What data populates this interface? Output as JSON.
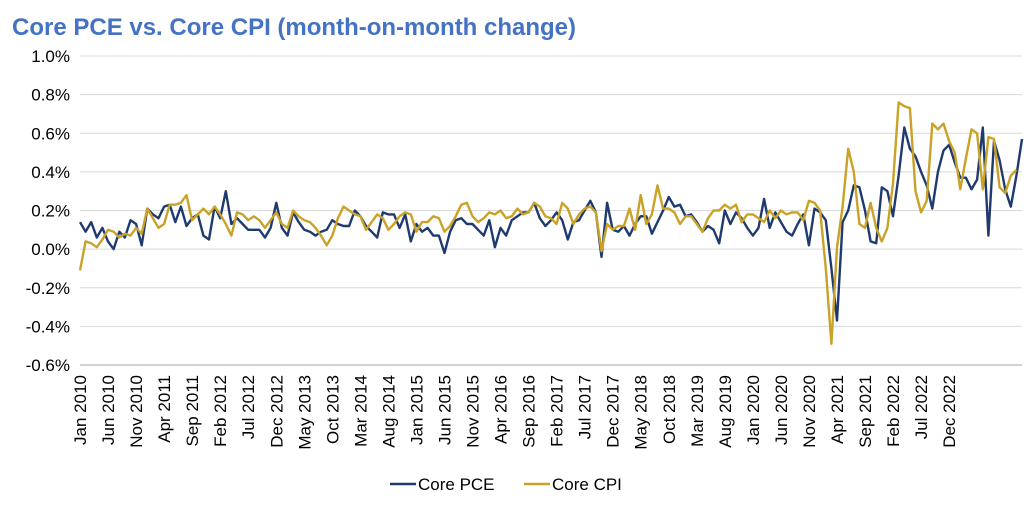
{
  "chart_data": {
    "type": "line",
    "title": "Core PCE vs. Core CPI (month-on-month change)",
    "xlabel": "",
    "ylabel": "",
    "ylim": [
      -0.6,
      1.0
    ],
    "yticks": [
      "1.0%",
      "0.8%",
      "0.6%",
      "0.4%",
      "0.2%",
      "0.0%",
      "-0.2%",
      "-0.4%",
      "-0.6%"
    ],
    "ytick_values": [
      1.0,
      0.8,
      0.6,
      0.4,
      0.2,
      0.0,
      -0.2,
      -0.4,
      -0.6
    ],
    "xtick_labels": [
      "Jan 2010",
      "Jun 2010",
      "Nov 2010",
      "Apr 2011",
      "Sep 2011",
      "Feb 2012",
      "Jul 2012",
      "Dec 2012",
      "May 2013",
      "Oct 2013",
      "Mar 2014",
      "Aug 2014",
      "Jan 2015",
      "Jun 2015",
      "Nov 2015",
      "Apr 2016",
      "Sep 2016",
      "Feb 2017",
      "Jul 2017",
      "Dec 2017",
      "May 2018",
      "Oct 2018",
      "Mar 2019",
      "Aug 2019",
      "Jan 2020",
      "Jun 2020",
      "Nov 2020",
      "Apr 2021",
      "Sep 2021",
      "Feb 2022",
      "Jul 2022",
      "Dec 2022"
    ],
    "grid": true,
    "legend_position": "bottom-center",
    "series": [
      {
        "name": "Core PCE",
        "color": "#1F3A6E",
        "values": [
          0.14,
          0.09,
          0.14,
          0.06,
          0.11,
          0.04,
          0.0,
          0.09,
          0.06,
          0.15,
          0.13,
          0.02,
          0.21,
          0.18,
          0.16,
          0.22,
          0.23,
          0.14,
          0.22,
          0.12,
          0.16,
          0.18,
          0.07,
          0.05,
          0.22,
          0.16,
          0.3,
          0.13,
          0.16,
          0.13,
          0.1,
          0.1,
          0.1,
          0.06,
          0.11,
          0.24,
          0.11,
          0.07,
          0.19,
          0.14,
          0.1,
          0.09,
          0.07,
          0.09,
          0.1,
          0.15,
          0.13,
          0.12,
          0.12,
          0.2,
          0.17,
          0.12,
          0.09,
          0.06,
          0.19,
          0.18,
          0.18,
          0.11,
          0.18,
          0.04,
          0.13,
          0.09,
          0.11,
          0.07,
          0.07,
          -0.02,
          0.09,
          0.15,
          0.16,
          0.13,
          0.13,
          0.1,
          0.07,
          0.15,
          0.01,
          0.11,
          0.07,
          0.15,
          0.17,
          0.19,
          0.19,
          0.24,
          0.16,
          0.12,
          0.15,
          0.19,
          0.15,
          0.05,
          0.14,
          0.15,
          0.2,
          0.25,
          0.19,
          -0.04,
          0.24,
          0.1,
          0.09,
          0.12,
          0.07,
          0.13,
          0.17,
          0.17,
          0.08,
          0.14,
          0.2,
          0.27,
          0.22,
          0.23,
          0.17,
          0.18,
          0.14,
          0.09,
          0.12,
          0.1,
          0.03,
          0.2,
          0.13,
          0.19,
          0.16,
          0.11,
          0.07,
          0.11,
          0.26,
          0.11,
          0.19,
          0.14,
          0.09,
          0.07,
          0.13,
          0.18,
          0.02,
          0.21,
          0.19,
          0.15,
          -0.1,
          -0.37,
          0.14,
          0.2,
          0.33,
          0.32,
          0.2,
          0.04,
          0.03,
          0.32,
          0.3,
          0.17,
          0.38,
          0.63,
          0.52,
          0.48,
          0.4,
          0.33,
          0.21,
          0.4,
          0.51,
          0.54,
          0.45,
          0.37,
          0.37,
          0.31,
          0.36,
          0.63,
          0.07,
          0.56,
          0.46,
          0.31,
          0.22,
          0.38,
          0.57
        ]
      },
      {
        "name": "Core CPI",
        "color": "#C9A227",
        "values": [
          -0.11,
          0.04,
          0.03,
          0.01,
          0.05,
          0.1,
          0.09,
          0.06,
          0.08,
          0.07,
          0.11,
          0.08,
          0.21,
          0.16,
          0.11,
          0.13,
          0.23,
          0.23,
          0.24,
          0.28,
          0.15,
          0.18,
          0.21,
          0.18,
          0.22,
          0.18,
          0.13,
          0.07,
          0.19,
          0.18,
          0.15,
          0.17,
          0.15,
          0.11,
          0.15,
          0.19,
          0.13,
          0.11,
          0.2,
          0.17,
          0.15,
          0.14,
          0.11,
          0.07,
          0.02,
          0.07,
          0.16,
          0.22,
          0.2,
          0.18,
          0.17,
          0.1,
          0.14,
          0.18,
          0.16,
          0.1,
          0.13,
          0.17,
          0.19,
          0.18,
          0.09,
          0.14,
          0.14,
          0.17,
          0.16,
          0.09,
          0.12,
          0.17,
          0.23,
          0.24,
          0.17,
          0.14,
          0.16,
          0.19,
          0.18,
          0.2,
          0.16,
          0.17,
          0.21,
          0.18,
          0.19,
          0.24,
          0.22,
          0.17,
          0.16,
          0.13,
          0.24,
          0.21,
          0.13,
          0.18,
          0.21,
          0.22,
          0.19,
          -0.01,
          0.13,
          0.1,
          0.12,
          0.12,
          0.21,
          0.1,
          0.28,
          0.13,
          0.18,
          0.33,
          0.21,
          0.21,
          0.19,
          0.13,
          0.17,
          0.17,
          0.13,
          0.09,
          0.16,
          0.2,
          0.2,
          0.23,
          0.21,
          0.23,
          0.14,
          0.18,
          0.18,
          0.16,
          0.14,
          0.2,
          0.16,
          0.2,
          0.18,
          0.19,
          0.19,
          0.15,
          0.25,
          0.24,
          0.2,
          -0.1,
          -0.49,
          0.01,
          0.22,
          0.52,
          0.4,
          0.13,
          0.11,
          0.24,
          0.11,
          0.04,
          0.11,
          0.34,
          0.76,
          0.74,
          0.73,
          0.3,
          0.19,
          0.25,
          0.65,
          0.62,
          0.65,
          0.56,
          0.5,
          0.31,
          0.47,
          0.62,
          0.6,
          0.31,
          0.58,
          0.57,
          0.32,
          0.29,
          0.38,
          0.41
        ]
      }
    ]
  }
}
